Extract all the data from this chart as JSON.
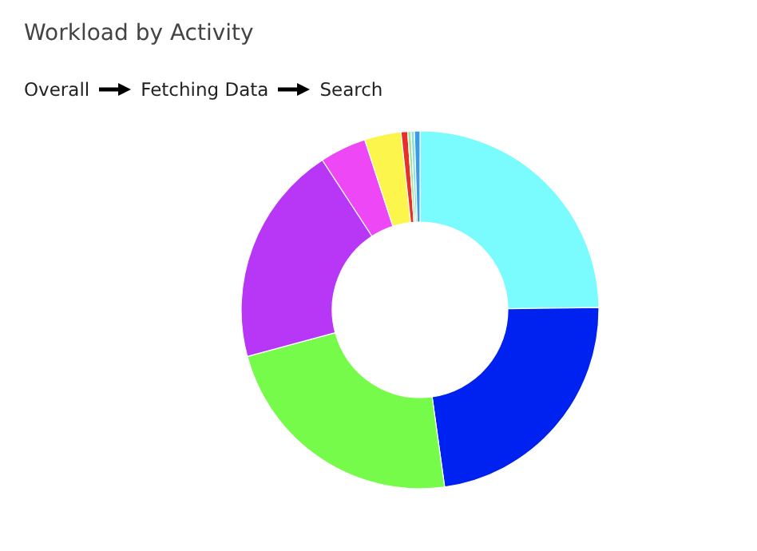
{
  "chart_data": {
    "type": "donut",
    "title": "Workload by Activity",
    "annotations": [
      "Overall",
      "Fetching Data",
      "Search"
    ],
    "categories": [
      null,
      null,
      null,
      null,
      null,
      null,
      null,
      null,
      null,
      null
    ],
    "values": [
      24.8,
      23,
      23,
      20,
      4.2,
      3.3,
      0.6,
      0.3,
      0.3,
      0.5
    ],
    "colors": [
      "#7afcff",
      "#0022f0",
      "#76fb4a",
      "#b836f5",
      "#ee47f5",
      "#fbf54c",
      "#e8302a",
      "#9ee89a",
      "#8ee0e0",
      "#3a9be8"
    ]
  }
}
